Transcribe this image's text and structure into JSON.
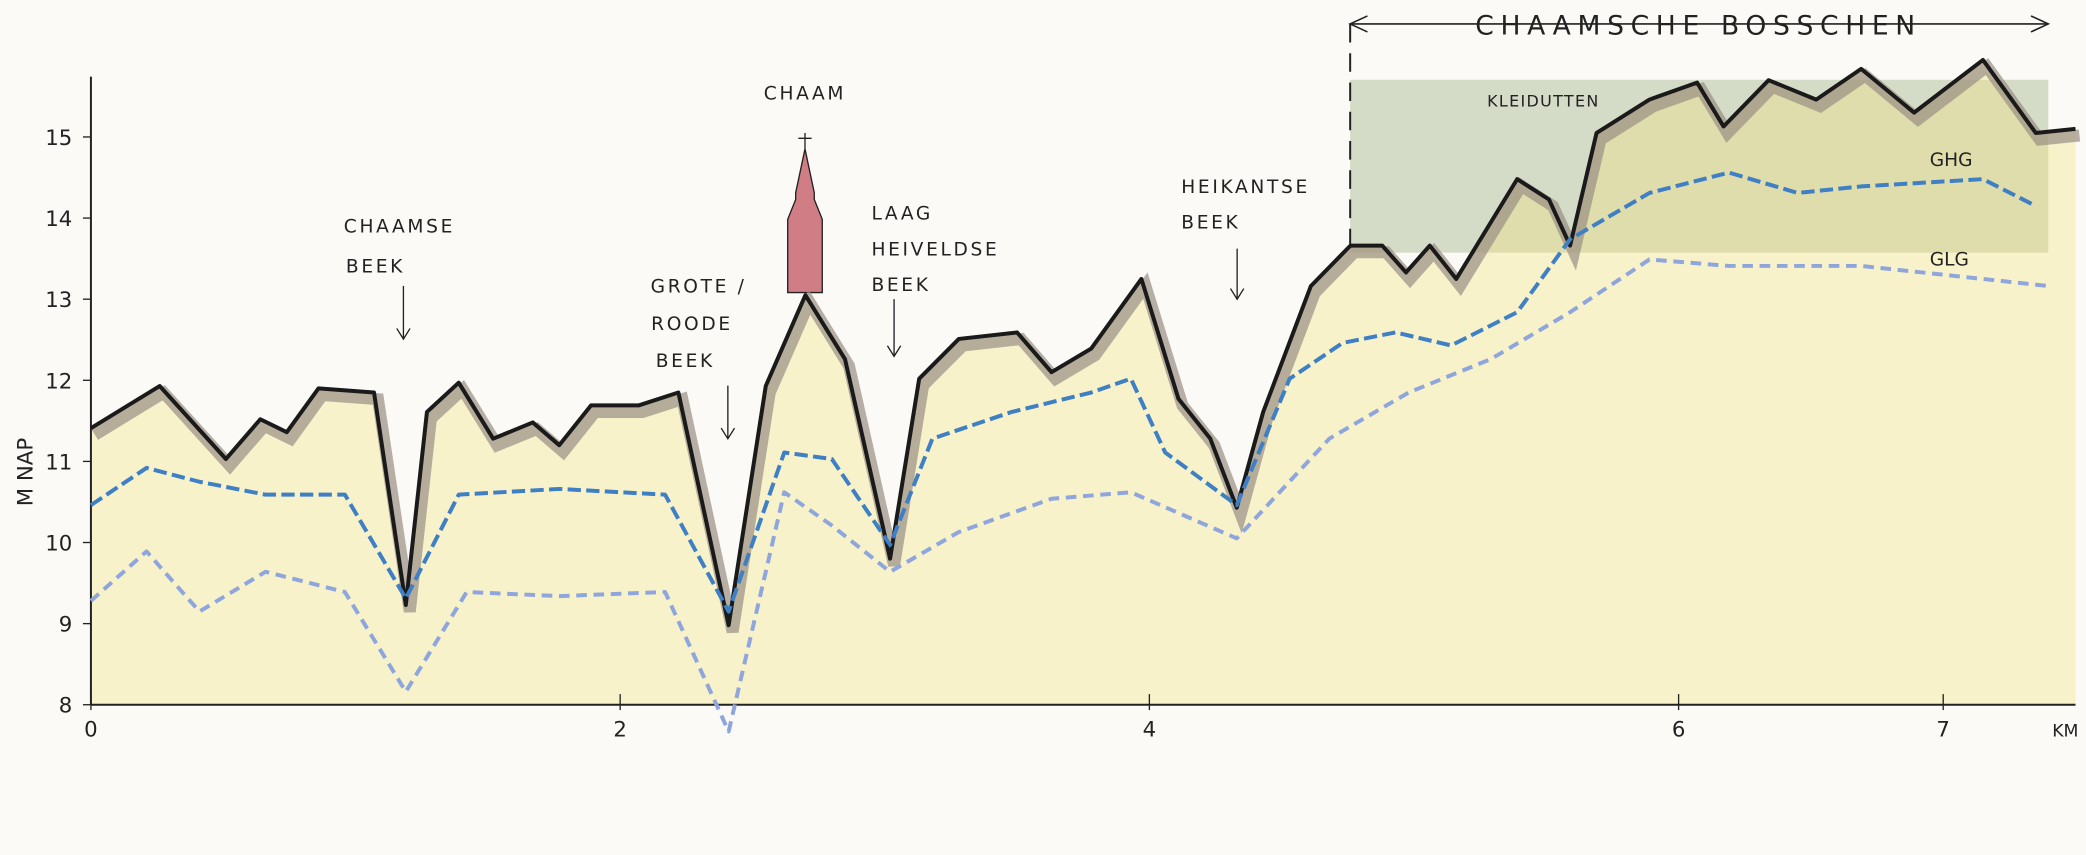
{
  "chart_data": {
    "type": "line",
    "ylabel": "M NAP",
    "xlabel": "KM",
    "xlim": [
      0,
      7.5
    ],
    "ylim": [
      7.6,
      16.4
    ],
    "xticks": [
      0,
      2,
      4,
      6,
      7
    ],
    "yticks": [
      8,
      9,
      10,
      11,
      12,
      13,
      14,
      15
    ],
    "series": [
      {
        "name": "",
        "color": "#1a1a1a",
        "x": [
          0,
          0.26,
          0.51,
          0.64,
          0.74,
          0.86,
          1.07,
          1.19,
          1.27,
          1.39,
          1.52,
          1.67,
          1.77,
          1.89,
          2.07,
          2.22,
          2.41,
          2.55,
          2.7,
          2.85,
          3.02,
          3.13,
          3.28,
          3.5,
          3.63,
          3.78,
          3.97,
          4.11,
          4.23,
          4.33,
          4.43,
          4.61,
          4.76,
          4.88,
          4.97,
          5.06,
          5.16,
          5.39,
          5.51,
          5.59,
          5.69,
          5.89,
          6.07,
          6.17,
          6.34,
          6.52,
          6.69,
          6.89,
          7.15,
          7.35,
          7.5
        ],
        "values": [
          11.41,
          11.93,
          11.03,
          11.52,
          11.36,
          11.9,
          11.85,
          9.23,
          11.61,
          11.97,
          11.28,
          11.48,
          11.2,
          11.69,
          11.69,
          11.85,
          8.98,
          11.93,
          13.05,
          12.26,
          9.8,
          12.02,
          12.51,
          12.59,
          12.1,
          12.39,
          13.25,
          11.77,
          11.28,
          10.43,
          11.61,
          13.16,
          13.66,
          13.66,
          13.33,
          13.66,
          13.25,
          14.48,
          14.23,
          13.66,
          15.05,
          15.46,
          15.67,
          15.13,
          15.7,
          15.46,
          15.84,
          15.3,
          15.95,
          15.05,
          15.1
        ]
      },
      {
        "name": "GHG",
        "color": "#3f7fc4",
        "x": [
          0,
          0.21,
          0.41,
          0.66,
          0.96,
          1.19,
          1.39,
          1.77,
          2.17,
          2.41,
          2.62,
          2.8,
          3.02,
          3.18,
          3.48,
          3.78,
          3.93,
          4.06,
          4.33,
          4.53,
          4.73,
          4.93,
          5.14,
          5.39,
          5.59,
          5.89,
          6.19,
          6.45,
          6.69,
          7.15,
          7.35
        ],
        "values": [
          10.46,
          10.92,
          10.75,
          10.59,
          10.59,
          9.31,
          10.59,
          10.66,
          10.59,
          9.15,
          11.11,
          11.03,
          9.97,
          11.28,
          11.61,
          11.85,
          12.02,
          11.11,
          10.46,
          12.02,
          12.46,
          12.59,
          12.43,
          12.84,
          13.74,
          14.31,
          14.56,
          14.31,
          14.39,
          14.48,
          14.15
        ]
      },
      {
        "name": "GLG",
        "color": "#8fa6dc",
        "x": [
          0,
          0.21,
          0.41,
          0.66,
          0.96,
          1.19,
          1.42,
          1.77,
          2.17,
          2.41,
          2.62,
          2.8,
          3.02,
          3.28,
          3.63,
          3.93,
          4.33,
          4.68,
          4.98,
          5.29,
          5.59,
          5.89,
          6.19,
          6.69,
          7.15,
          7.4
        ],
        "values": [
          9.28,
          9.89,
          9.15,
          9.64,
          9.39,
          8.16,
          9.39,
          9.34,
          9.39,
          7.67,
          10.62,
          10.21,
          9.64,
          10.13,
          10.54,
          10.62,
          10.05,
          11.28,
          11.85,
          12.26,
          12.84,
          13.49,
          13.41,
          13.41,
          13.25,
          13.16
        ]
      }
    ],
    "annotations": {
      "chaam": "CHAAM",
      "chaamse_beek": [
        "CHAAMSE",
        "BEEK"
      ],
      "grote_roode_beek": [
        "GROTE /",
        "ROODE",
        "BEEK"
      ],
      "laag_heiveldse_beek": [
        "LAAG",
        "HEIVELDSE",
        "BEEK"
      ],
      "heikantse_beek": [
        "HEIKANTSE",
        "BEEK"
      ],
      "chaamsche_bosschen": "CHAAMSCHE BOSSCHEN",
      "kleidutten": "KLEIDUTTEN"
    }
  }
}
